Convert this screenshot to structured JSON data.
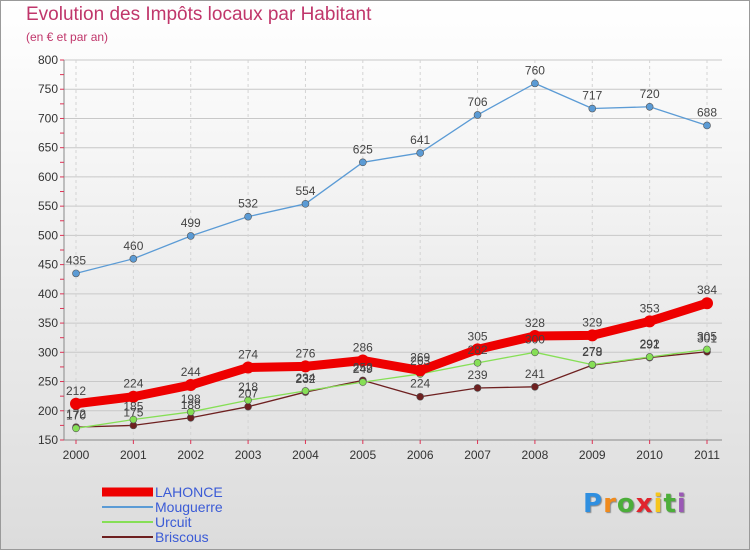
{
  "chart_data": {
    "type": "line",
    "title": "Evolution des Impôts locaux par Habitant",
    "subtitle": "(en € et par an)",
    "x": [
      "2000",
      "2001",
      "2002",
      "2003",
      "2004",
      "2005",
      "2006",
      "2007",
      "2008",
      "2009",
      "2010",
      "2011"
    ],
    "yticks": [
      150,
      200,
      250,
      300,
      350,
      400,
      450,
      500,
      550,
      600,
      650,
      700,
      750,
      800
    ],
    "ylim": [
      150,
      800
    ],
    "series": [
      {
        "name": "LAHONCE",
        "color": "#ee0000",
        "values": [
          212,
          224,
          244,
          274,
          276,
          286,
          269,
          305,
          328,
          329,
          353,
          384
        ],
        "labels": [
          "212",
          "224",
          "244",
          "274",
          "276",
          "286",
          "269",
          "305",
          "328",
          "329",
          "353",
          "384"
        ]
      },
      {
        "name": "Mouguerre",
        "color": "#5b9bd5",
        "values": [
          435,
          460,
          499,
          532,
          554,
          625,
          641,
          706,
          760,
          717,
          720,
          688
        ],
        "labels": [
          "435",
          "460",
          "499",
          "532",
          "554",
          "625",
          "641",
          "706",
          "760",
          "717",
          "720",
          "688"
        ]
      },
      {
        "name": "Urcuit",
        "color": "#86df56",
        "values": [
          170,
          185,
          198,
          218,
          234,
          249,
          263,
          282,
          300,
          279,
          292,
          305
        ],
        "labels": [
          "170",
          "185",
          "198",
          "218",
          "234",
          "249",
          "263",
          "282",
          "300",
          "279",
          "292",
          "305"
        ]
      },
      {
        "name": "Briscous",
        "color": "#6e2020",
        "values": [
          172,
          175,
          188,
          207,
          232,
          252,
          224,
          239,
          241,
          278,
          291,
          301
        ],
        "labels": [
          "172",
          "175",
          "188",
          "207",
          "232",
          "252",
          "224",
          "239",
          "241",
          "278",
          "291",
          "301"
        ]
      }
    ]
  },
  "brand": {
    "letters": [
      "P",
      "r",
      "o",
      "x",
      "i",
      "t",
      "i"
    ],
    "colors": [
      "#2f8fe0",
      "#f08a1c",
      "#4cae3a",
      "#e0252d",
      "#f6c61d",
      "#4cae3a",
      "#9b59b6"
    ]
  }
}
